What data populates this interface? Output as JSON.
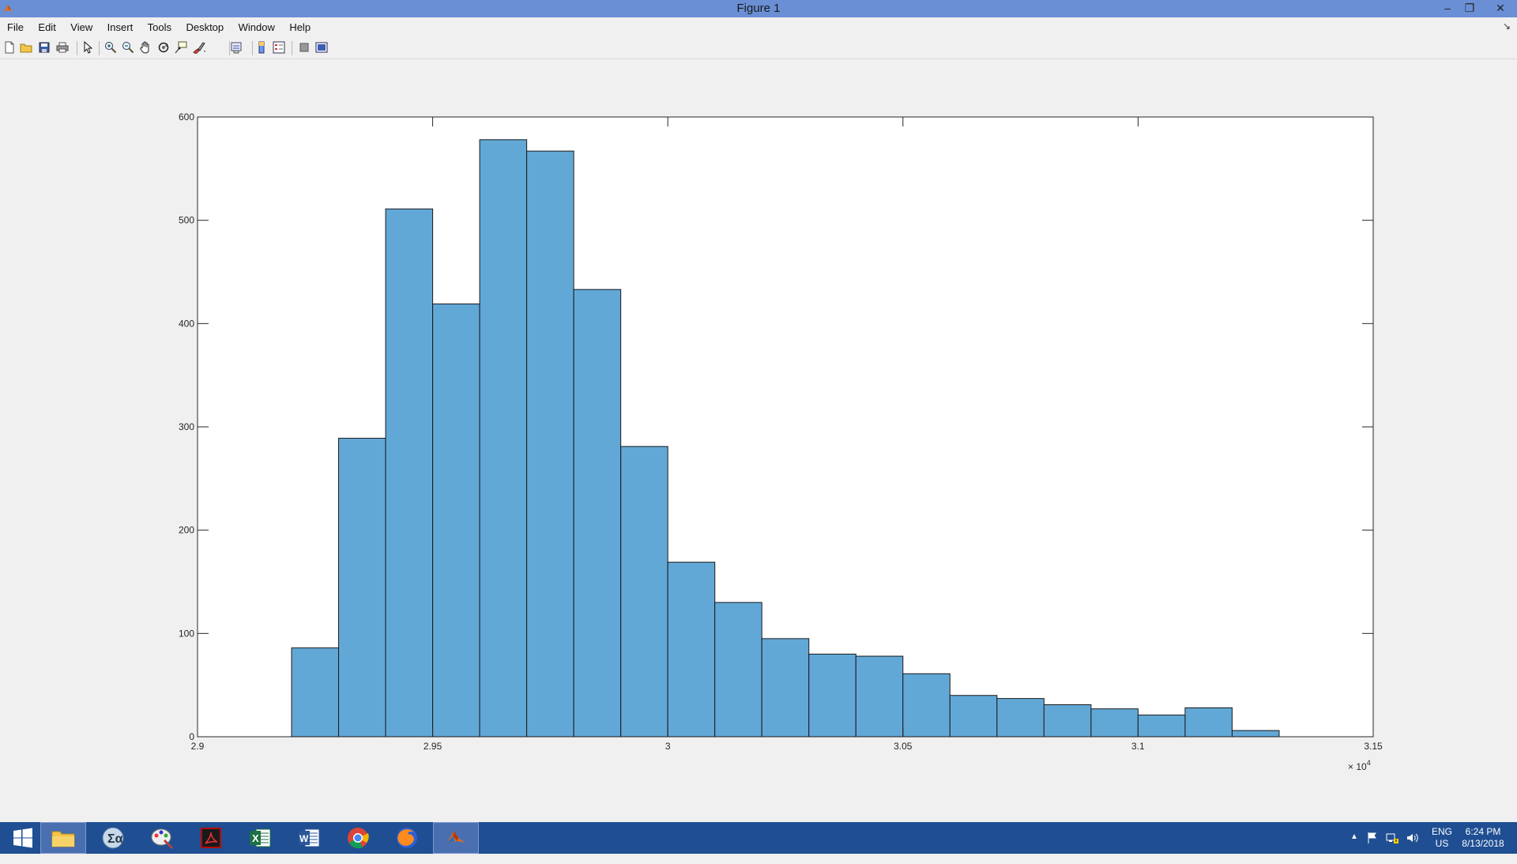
{
  "window": {
    "title": "Figure 1",
    "minimize_glyph": "–",
    "restore_glyph": "❐",
    "close_glyph": "✕"
  },
  "menu": {
    "items": [
      "File",
      "Edit",
      "View",
      "Insert",
      "Tools",
      "Desktop",
      "Window",
      "Help"
    ],
    "dock_glyph": "↘"
  },
  "toolbar": {
    "icons": [
      "new-figure-icon",
      "open-file-icon",
      "save-icon",
      "print-icon",
      "edit-plot-arrow-icon",
      "zoom-in-icon",
      "zoom-out-icon",
      "pan-hand-icon",
      "rotate-3d-icon",
      "data-cursor-icon",
      "brush-icon",
      "link-plot-icon",
      "insert-colorbar-icon",
      "insert-legend-icon",
      "hide-plot-tools-icon",
      "show-plot-tools-icon"
    ]
  },
  "chart_data": {
    "type": "bar",
    "title": "",
    "xlabel": "",
    "ylabel": "",
    "x_exponent_label": "× 10",
    "x_exponent": "4",
    "xlim": [
      2.9,
      3.15
    ],
    "ylim": [
      0,
      600
    ],
    "xticks": [
      "2.9",
      "2.95",
      "3",
      "3.05",
      "3.1",
      "3.15"
    ],
    "yticks": [
      "0",
      "100",
      "200",
      "300",
      "400",
      "500",
      "600"
    ],
    "bin_width": 0.01,
    "bin_edges_start": [
      2.92,
      2.93,
      2.94,
      2.95,
      2.96,
      2.97,
      2.98,
      2.99,
      3.0,
      3.01,
      3.02,
      3.03,
      3.04,
      3.05,
      3.06,
      3.07,
      3.08,
      3.09,
      3.1,
      3.11,
      3.12
    ],
    "values": [
      86,
      289,
      511,
      419,
      578,
      567,
      433,
      281,
      169,
      130,
      95,
      80,
      78,
      61,
      40,
      37,
      31,
      27,
      21,
      28,
      6
    ],
    "bar_color": "#62a8d7",
    "grid": false,
    "legend": "none"
  },
  "taskbar": {
    "apps": [
      {
        "name": "start-button",
        "icon": "windows-logo-icon"
      },
      {
        "name": "file-explorer-task",
        "icon": "folder-icon"
      },
      {
        "name": "mathtype-task",
        "icon": "sigma-icon"
      },
      {
        "name": "paint-task",
        "icon": "paint-icon"
      },
      {
        "name": "acrobat-task",
        "icon": "acrobat-icon"
      },
      {
        "name": "excel-task",
        "icon": "excel-icon",
        "label": "X"
      },
      {
        "name": "word-task",
        "icon": "word-icon",
        "label": "W"
      },
      {
        "name": "chrome-task",
        "icon": "chrome-icon"
      },
      {
        "name": "firefox-task",
        "icon": "firefox-icon"
      },
      {
        "name": "matlab-task",
        "icon": "matlab-icon",
        "active": true
      }
    ],
    "tray": {
      "expand_glyph": "▲",
      "lang_line1": "ENG",
      "lang_line2": "US",
      "time": "6:24 PM",
      "date": "8/13/2018"
    }
  },
  "colors": {
    "titlebar": "#6a8fd4",
    "taskbar": "#1f4e92",
    "figure_bg": "#f0f0f0",
    "bar_fill": "#62a8d7"
  }
}
